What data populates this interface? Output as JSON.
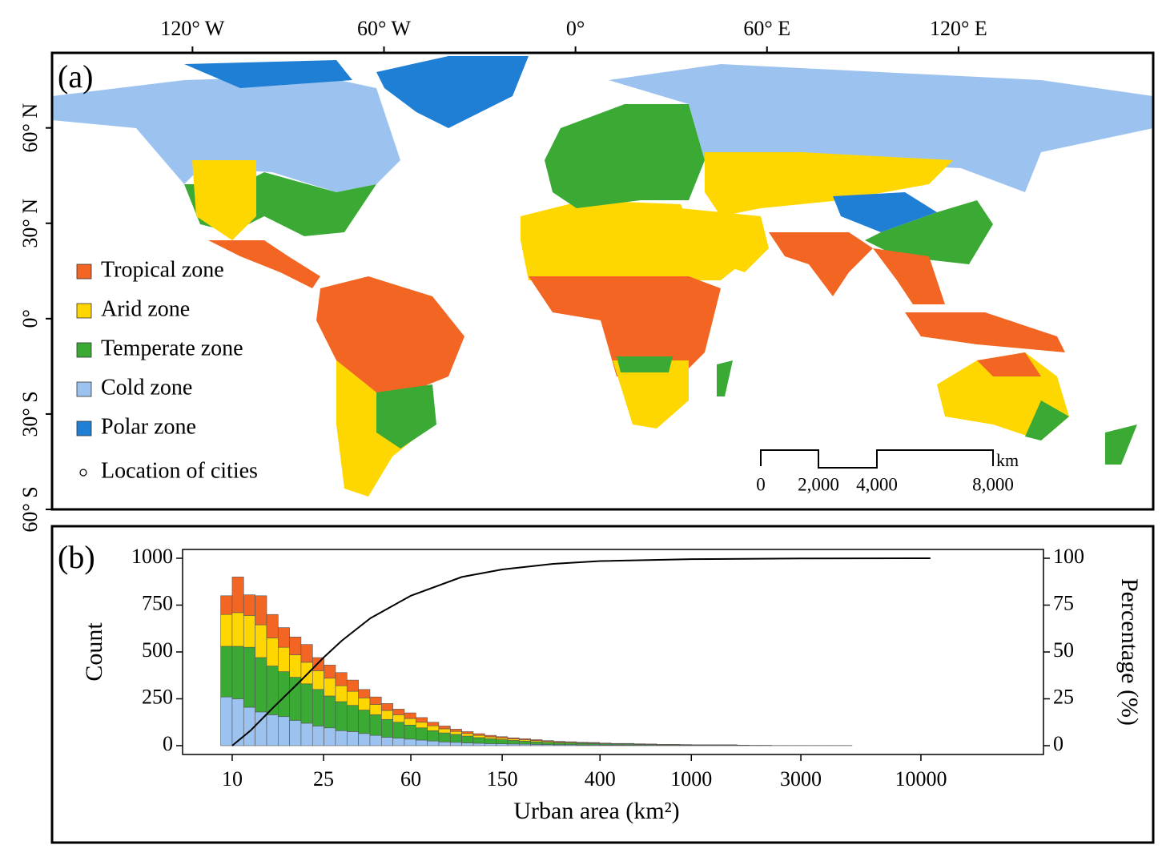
{
  "map": {
    "panel_label": "(a)",
    "xlim": [
      -164,
      181
    ],
    "ylim": [
      -60,
      83.6
    ],
    "xticks": [
      {
        "value": -120,
        "label": "120° W"
      },
      {
        "value": -60,
        "label": "60° W"
      },
      {
        "value": 0,
        "label": "0°"
      },
      {
        "value": 60,
        "label": "60° E"
      },
      {
        "value": 120,
        "label": "120° E"
      }
    ],
    "yticks": [
      {
        "value": 60,
        "label": "60° N"
      },
      {
        "value": 30,
        "label": "30° N"
      },
      {
        "value": 0,
        "label": "0°"
      },
      {
        "value": -30,
        "label": "30° S"
      },
      {
        "value": -60,
        "label": "60° S"
      }
    ],
    "legend_cities": "Location of cities",
    "scale_bar": {
      "unit": "km",
      "labels": [
        "0",
        "2,000",
        "4,000",
        "8,000"
      ]
    }
  },
  "chart_data": [
    {
      "type": "histogram",
      "panel_label": "(b)",
      "xlabel": "Urban area (km²)",
      "ylabel": "Count",
      "log_x": true,
      "xlim": [
        6.08,
        34190
      ],
      "xticks": [
        10,
        25,
        60,
        150,
        400,
        1000,
        3000,
        10000
      ],
      "ylim": [
        -47,
        1047
      ],
      "yticks": [
        0,
        250,
        500,
        750,
        1000
      ],
      "bins": [
        8.91,
        10,
        11.22,
        12.59,
        14.13,
        15.85,
        17.78,
        19.95,
        22.39,
        25.12,
        28.18,
        31.62,
        35.48,
        39.81,
        44.67,
        50.12,
        56.23,
        63.1,
        70.79,
        79.43,
        89.13,
        100,
        112.2,
        125.9,
        141.3,
        158.5,
        177.8,
        199.5,
        223.9,
        251.2,
        281.8,
        316.2,
        354.8,
        398.1,
        446.7,
        501.2,
        562.3,
        631,
        707.9,
        794.3,
        891.3,
        1000,
        1122,
        1259,
        1413,
        1585,
        1778,
        1995,
        2239,
        2512,
        2818,
        3162,
        3548,
        3981,
        4467,
        5012,
        5623,
        6310,
        7079,
        7943,
        8913,
        10000,
        11220,
        12589,
        14125,
        15849,
        17783,
        19953,
        22387
      ],
      "series": [
        {
          "name": "Tropical zone",
          "color": "#f26522",
          "values": [
            100,
            190,
            110,
            155,
            125,
            105,
            95,
            95,
            70,
            70,
            70,
            60,
            45,
            40,
            37,
            30,
            30,
            25,
            19,
            15,
            12,
            10,
            9,
            8,
            7,
            6,
            6,
            5,
            4,
            4,
            3,
            3,
            3,
            2,
            2,
            2,
            2,
            1,
            1,
            1,
            1,
            1,
            1,
            1,
            1,
            0,
            0,
            0,
            0,
            0,
            0,
            0,
            0,
            0,
            0,
            0,
            0,
            0,
            0,
            0,
            0,
            0,
            0,
            0,
            0,
            0,
            0,
            0
          ]
        },
        {
          "name": "Arid zone",
          "color": "#ffd700",
          "values": [
            170,
            180,
            170,
            175,
            150,
            130,
            120,
            115,
            100,
            95,
            85,
            75,
            65,
            55,
            48,
            40,
            35,
            30,
            26,
            22,
            16,
            14,
            12,
            10,
            9,
            8,
            7,
            6,
            5,
            4,
            4,
            3,
            3,
            3,
            2,
            2,
            2,
            2,
            1,
            1,
            1,
            1,
            1,
            1,
            1,
            1,
            0,
            0,
            0,
            0,
            0,
            0,
            0,
            0,
            0,
            0,
            0,
            0,
            0,
            0,
            0,
            0,
            0,
            0,
            0,
            0,
            0,
            0
          ]
        },
        {
          "name": "Temperate zone",
          "color": "#3aaa35",
          "values": [
            270,
            280,
            320,
            290,
            260,
            240,
            230,
            210,
            195,
            170,
            155,
            140,
            125,
            110,
            95,
            85,
            75,
            65,
            55,
            48,
            42,
            36,
            30,
            26,
            22,
            19,
            16,
            14,
            12,
            10,
            9,
            8,
            7,
            6,
            5,
            5,
            4,
            4,
            3,
            3,
            3,
            2,
            2,
            2,
            2,
            1,
            1,
            1,
            1,
            1,
            1,
            1,
            1,
            1,
            1,
            0,
            0,
            0,
            0,
            0,
            0,
            0,
            0,
            0,
            0,
            0,
            0,
            0
          ]
        },
        {
          "name": "Cold zone",
          "color": "#9cc3f0",
          "values": [
            260,
            250,
            205,
            180,
            165,
            155,
            135,
            120,
            105,
            95,
            80,
            75,
            65,
            55,
            45,
            40,
            35,
            30,
            25,
            20,
            18,
            15,
            13,
            11,
            10,
            9,
            8,
            7,
            6,
            5,
            5,
            4,
            4,
            3,
            3,
            3,
            2,
            2,
            2,
            2,
            1,
            1,
            1,
            1,
            1,
            1,
            1,
            1,
            0,
            0,
            0,
            0,
            0,
            0,
            0,
            0,
            0,
            0,
            0,
            0,
            0,
            0,
            0,
            0,
            0,
            0,
            0,
            0
          ]
        },
        {
          "name": "Polar zone",
          "color": "#1f7fd4",
          "values": [
            0,
            0,
            0,
            0,
            0,
            0,
            0,
            0,
            0,
            0,
            0,
            0,
            0,
            0,
            0,
            0,
            0,
            0,
            0,
            0,
            0,
            0,
            0,
            0,
            0,
            0,
            0,
            0,
            0,
            0,
            0,
            0,
            0,
            0,
            0,
            0,
            0,
            0,
            0,
            0,
            0,
            0,
            0,
            0,
            0,
            0,
            0,
            0,
            0,
            0,
            0,
            0,
            0,
            0,
            0,
            0,
            0,
            0,
            0,
            0,
            0,
            0,
            0,
            0,
            0,
            0,
            0,
            0
          ]
        }
      ]
    },
    {
      "type": "line",
      "axis": "y2",
      "color": "#000000",
      "y2label": "Percentage (%)",
      "y2lim": [
        -4.7,
        104.7
      ],
      "y2ticks": [
        0,
        25,
        50,
        75,
        100
      ],
      "x": [
        10,
        12,
        15,
        20,
        25,
        30,
        40,
        60,
        100,
        150,
        250,
        400,
        1000,
        3000,
        11000
      ],
      "values": [
        0,
        8,
        20,
        35,
        47,
        56,
        68,
        80,
        90,
        94,
        97,
        98.5,
        99.5,
        99.9,
        100
      ]
    }
  ]
}
